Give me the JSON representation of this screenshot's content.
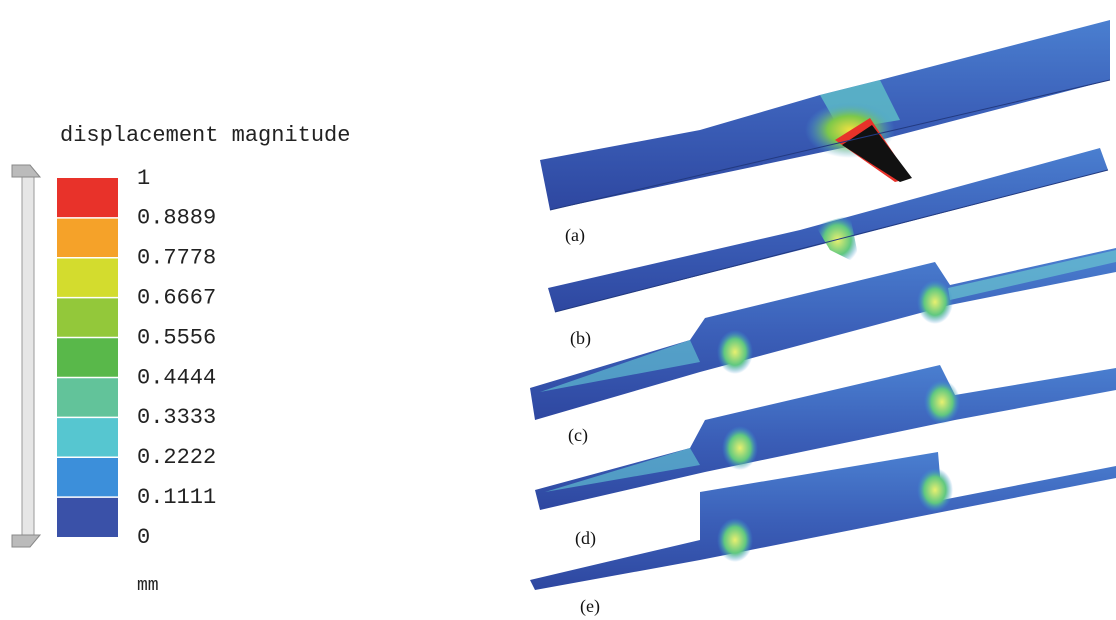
{
  "chart_data": {
    "type": "colorbar",
    "title": "displacement magnitude",
    "unit": "mm",
    "ylim": [
      0,
      1
    ],
    "yticks": [
      1,
      0.8889,
      0.7778,
      0.6667,
      0.5556,
      0.4444,
      0.3333,
      0.2222,
      0.1111,
      0
    ],
    "colors": [
      "#e8322a",
      "#f5a229",
      "#d3dc2e",
      "#93c83a",
      "#59b84a",
      "#62c39a",
      "#56c6d0",
      "#3c8fda",
      "#3a51a8"
    ]
  },
  "panels": [
    "(a)",
    "(b)",
    "(c)",
    "(d)",
    "(e)"
  ]
}
